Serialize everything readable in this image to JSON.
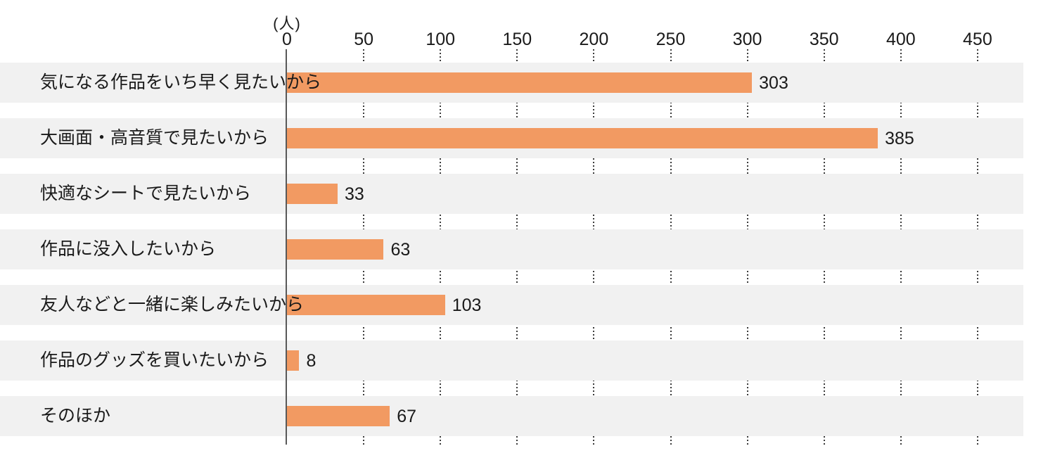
{
  "chart_data": {
    "type": "bar",
    "orientation": "horizontal",
    "title": "",
    "unit_label": "(人)",
    "categories": [
      "気になる作品をいち早く見たいから",
      "大画面・高音質で見たいから",
      "快適なシートで見たいから",
      "作品に没入したいから",
      "友人などと一緒に楽しみたいから",
      "作品のグッズを買いたいから",
      "そのほか"
    ],
    "values": [
      303,
      385,
      33,
      63,
      103,
      8,
      67
    ],
    "xticks": [
      0,
      50,
      100,
      150,
      200,
      250,
      300,
      350,
      400,
      450
    ],
    "xlim": [
      0,
      480
    ],
    "grid": "dotted-vertical-in-gaps",
    "legend": "none",
    "colors": {
      "bar": "#F29A62",
      "row_stripe": "#F1F1F1",
      "axis_line": "#595959",
      "gridline": "#3C3C3C",
      "text": "#1A1A1A",
      "background": "#FFFFFF"
    }
  }
}
